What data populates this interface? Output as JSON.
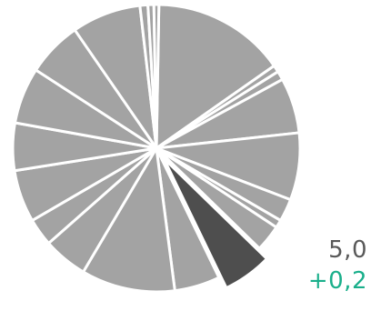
{
  "chart_data": {
    "type": "pie",
    "title": "",
    "slices": [
      {
        "value": 13.5,
        "highlight": false
      },
      {
        "value": 0.7,
        "highlight": false
      },
      {
        "value": 0.9,
        "highlight": false
      },
      {
        "value": 5.6,
        "highlight": false
      },
      {
        "value": 6.8,
        "highlight": false
      },
      {
        "value": 2.3,
        "highlight": false
      },
      {
        "value": 0.8,
        "highlight": false
      },
      {
        "value": 2.7,
        "highlight": false
      },
      {
        "value": 5.0,
        "highlight": true
      },
      {
        "value": 4.6,
        "highlight": false
      },
      {
        "value": 9.5,
        "highlight": false
      },
      {
        "value": 4.5,
        "highlight": false
      },
      {
        "value": 2.8,
        "highlight": false
      },
      {
        "value": 5.3,
        "highlight": false
      },
      {
        "value": 4.8,
        "highlight": false
      },
      {
        "value": 5.7,
        "highlight": false
      },
      {
        "value": 5.6,
        "highlight": false
      },
      {
        "value": 7.0,
        "highlight": false
      },
      {
        "value": 0.8,
        "highlight": false
      },
      {
        "value": 0.6,
        "highlight": false
      },
      {
        "value": 0.5,
        "highlight": false
      }
    ],
    "colors": {
      "slice": "#a3a3a3",
      "highlight": "#4e4e4e",
      "separator": "#ffffff"
    },
    "highlight_label": "5,0",
    "highlight_delta": "+0,2",
    "delta_color": "#1aaf8b",
    "label_color": "#595959",
    "legend": "none"
  }
}
